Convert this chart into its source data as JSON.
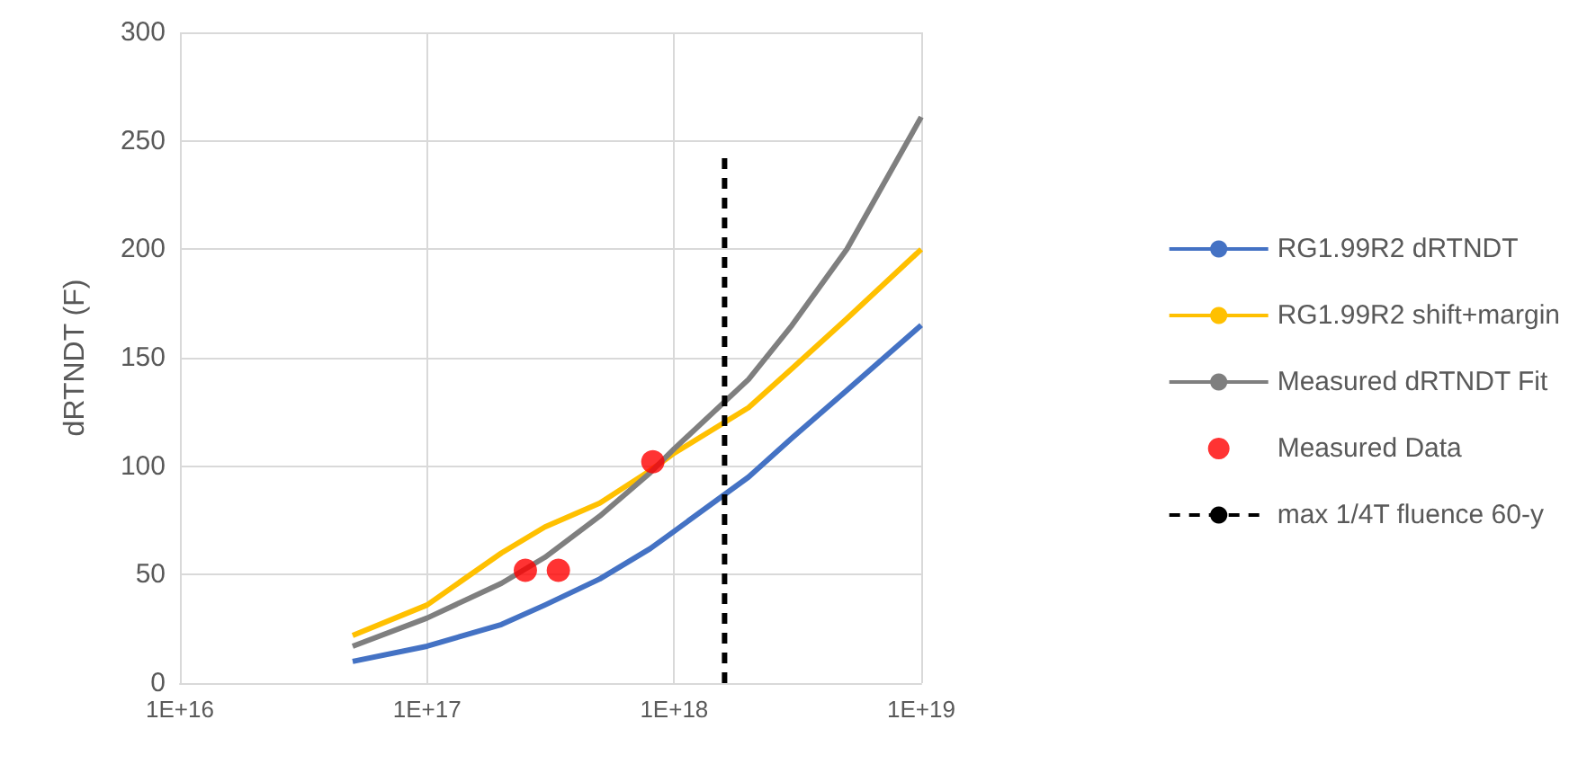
{
  "chart_data": {
    "type": "line",
    "ylabel": "dRTNDT (F)",
    "x": [
      5e+16,
      1e+17,
      2e+17,
      3e+17,
      5e+17,
      8e+17,
      1e+18,
      2e+18,
      3e+18,
      5e+18,
      1e+19
    ],
    "series": [
      {
        "name": "RG1.99R2 dRTNDT",
        "color": "#4472c4",
        "values": [
          10,
          17,
          27,
          36,
          48,
          62,
          70,
          95,
          113,
          135,
          165
        ]
      },
      {
        "name": "RG1.99R2 shift+margin",
        "color": "#ffc000",
        "values": [
          22,
          36,
          60,
          72,
          83,
          98,
          106,
          127,
          145,
          168,
          200
        ]
      },
      {
        "name": "Measured dRTNDT Fit",
        "color": "#7f7f7f",
        "values": [
          17,
          30,
          46,
          58,
          77,
          97,
          108,
          140,
          165,
          200,
          261
        ]
      },
      {
        "name": "Measured Data",
        "type": "scatter",
        "color": "#ff0000",
        "marker": "circle",
        "x": [
          2.5e+17,
          3.4e+17,
          8.2e+17
        ],
        "values": [
          52,
          52,
          102
        ]
      },
      {
        "name": "max 1/4T fluence 60-y",
        "color": "#000000",
        "line_style": "dashed",
        "x": [
          1.6e+18,
          1.6e+18
        ],
        "values": [
          0,
          244
        ]
      }
    ],
    "log": "x",
    "xlim": [
      1e+16,
      1e+19
    ],
    "xticks": [
      {
        "value": 1e+16,
        "label": "1E+16"
      },
      {
        "value": 1e+17,
        "label": "1E+17"
      },
      {
        "value": 1e+18,
        "label": "1E+18"
      },
      {
        "value": 1e+19,
        "label": "1E+19"
      }
    ],
    "ylim": [
      0,
      300
    ],
    "yticks": [
      0,
      50,
      100,
      150,
      200,
      250,
      300
    ],
    "grid": true,
    "legend": "right",
    "marker": "none",
    "line_style": "solid"
  }
}
